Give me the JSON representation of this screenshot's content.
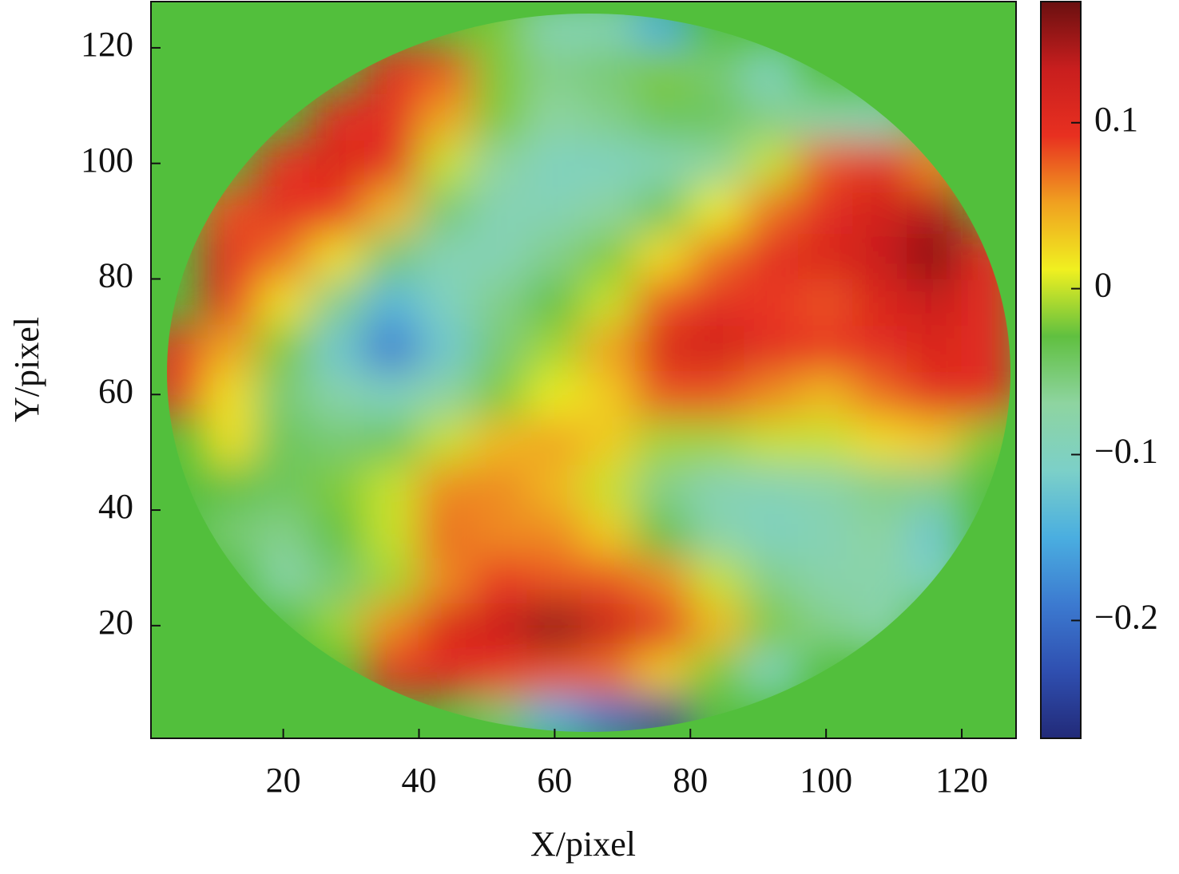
{
  "chart_data": {
    "type": "heatmap",
    "x_label": "X/pixel",
    "y_label": "Y/pixel",
    "xlim": [
      0.5,
      128
    ],
    "ylim": [
      0.5,
      128
    ],
    "xticks": [
      20,
      40,
      60,
      80,
      100,
      120
    ],
    "yticks": [
      20,
      40,
      60,
      80,
      100,
      120
    ],
    "x": [
      4,
      12,
      20,
      28,
      36,
      44,
      52,
      60,
      68,
      76,
      84,
      92,
      100,
      108,
      116,
      124
    ],
    "y": [
      4,
      12,
      20,
      28,
      36,
      44,
      52,
      60,
      68,
      76,
      84,
      92,
      100,
      108,
      116,
      124
    ],
    "z": [
      [
        null,
        null,
        null,
        null,
        null,
        null,
        -0.05,
        -0.15,
        -0.2,
        -0.25,
        null,
        null,
        null,
        null,
        null,
        null
      ],
      [
        null,
        null,
        null,
        null,
        0.1,
        0.1,
        0.09,
        0.08,
        0.07,
        0.03,
        -0.02,
        -0.1,
        null,
        null,
        null,
        null
      ],
      [
        null,
        null,
        null,
        -0.01,
        0.06,
        0.11,
        0.13,
        0.16,
        0.13,
        0.1,
        0.04,
        -0.02,
        -0.06,
        -0.08,
        null,
        null
      ],
      [
        null,
        null,
        -0.08,
        -0.05,
        -0.01,
        0.06,
        0.09,
        0.08,
        0.08,
        0.06,
        0.0,
        -0.06,
        -0.08,
        -0.08,
        -0.1,
        null
      ],
      [
        null,
        -0.05,
        -0.06,
        -0.03,
        0.0,
        0.07,
        0.06,
        0.06,
        0.03,
        -0.03,
        -0.08,
        -0.1,
        -0.09,
        -0.07,
        -0.12,
        null
      ],
      [
        null,
        -0.03,
        -0.04,
        -0.02,
        0.0,
        0.06,
        0.06,
        0.04,
        0.0,
        -0.06,
        -0.09,
        -0.09,
        -0.08,
        -0.06,
        -0.06,
        null
      ],
      [
        null,
        0.02,
        -0.04,
        -0.05,
        -0.04,
        0.0,
        0.04,
        0.05,
        0.03,
        -0.01,
        -0.01,
        0.0,
        0.0,
        0.02,
        0.03,
        -0.02
      ],
      [
        0.1,
        0.02,
        -0.05,
        -0.08,
        -0.1,
        -0.07,
        -0.02,
        0.01,
        0.03,
        0.08,
        0.08,
        0.06,
        0.04,
        0.07,
        0.1,
        0.1
      ],
      [
        0.1,
        0.05,
        -0.02,
        -0.12,
        -0.19,
        -0.12,
        -0.05,
        -0.01,
        0.05,
        0.11,
        0.12,
        0.1,
        0.09,
        0.1,
        0.11,
        0.1
      ],
      [
        null,
        0.09,
        0.02,
        -0.06,
        -0.14,
        -0.1,
        -0.06,
        -0.03,
        0.0,
        0.08,
        0.1,
        0.09,
        0.08,
        0.11,
        0.13,
        0.1
      ],
      [
        null,
        0.1,
        0.07,
        0.02,
        -0.05,
        -0.09,
        -0.09,
        -0.06,
        -0.02,
        0.02,
        0.07,
        0.1,
        0.11,
        0.13,
        0.16,
        0.1
      ],
      [
        null,
        0.08,
        0.1,
        0.09,
        0.04,
        -0.05,
        -0.09,
        -0.09,
        -0.07,
        -0.04,
        0.01,
        0.07,
        0.1,
        0.12,
        0.14,
        null
      ],
      [
        null,
        null,
        0.09,
        0.11,
        0.1,
        0.0,
        -0.07,
        -0.1,
        -0.1,
        -0.09,
        -0.07,
        0.0,
        0.08,
        0.1,
        0.06,
        null
      ],
      [
        null,
        null,
        null,
        0.1,
        0.1,
        0.05,
        -0.02,
        -0.07,
        -0.06,
        -0.04,
        -0.04,
        -0.06,
        -0.08,
        -0.09,
        null,
        null
      ],
      [
        null,
        null,
        null,
        null,
        0.1,
        0.08,
        -0.02,
        -0.06,
        -0.05,
        -0.02,
        -0.05,
        -0.1,
        null,
        null,
        null,
        null
      ],
      [
        null,
        null,
        null,
        null,
        null,
        null,
        -0.02,
        -0.09,
        -0.09,
        -0.15,
        null,
        null,
        null,
        null,
        null,
        null
      ]
    ],
    "zlim": [
      -0.271,
      0.173
    ],
    "zticks": [
      {
        "value": -0.2,
        "label": "−0.2"
      },
      {
        "value": -0.1,
        "label": "−0.1"
      },
      0,
      0.1
    ],
    "colormap": [
      "#222a78",
      "#2f4fb0",
      "#3c7ad0",
      "#4aaee0",
      "#7cd0c8",
      "#8ed4a0",
      "#60c040",
      "#f0f020",
      "#f0a020",
      "#e83020",
      "#c81e1e",
      "#6a1010"
    ],
    "background_color": "#52bf3c"
  }
}
